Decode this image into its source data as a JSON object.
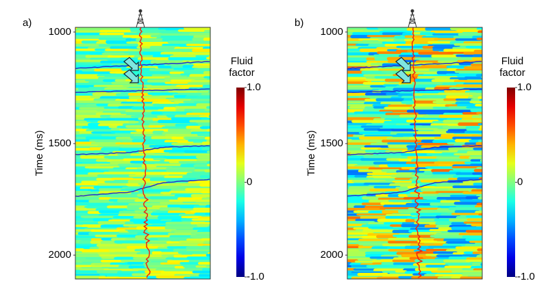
{
  "chart_data": [
    {
      "type": "heatmap",
      "panel_label": "a)",
      "y_label": "Time (ms)",
      "ylim": [
        979,
        2107
      ],
      "y_inverted": true,
      "yticks": [
        1000,
        1500,
        2000
      ],
      "colorbar_label": [
        "Fluid",
        "factor"
      ],
      "clim": [
        -1,
        1
      ],
      "colorbar_ticks": [
        {
          "value": 1,
          "label": "1.0"
        },
        0,
        {
          "value": -1,
          "label": "-1.0"
        }
      ],
      "colormap": "jet"
    },
    {
      "type": "heatmap",
      "panel_label": "b)",
      "y_label": "Time (ms)",
      "ylim": [
        979,
        2107
      ],
      "y_inverted": true,
      "yticks": [
        1000,
        1500,
        2000
      ],
      "colorbar_label": [
        "Fluid",
        "factor"
      ],
      "clim": [
        -1,
        1
      ],
      "colorbar_ticks": [
        {
          "value": 1,
          "label": "1.0"
        },
        0,
        {
          "value": -1,
          "label": "-1.0"
        }
      ],
      "colormap": "jet"
    }
  ]
}
